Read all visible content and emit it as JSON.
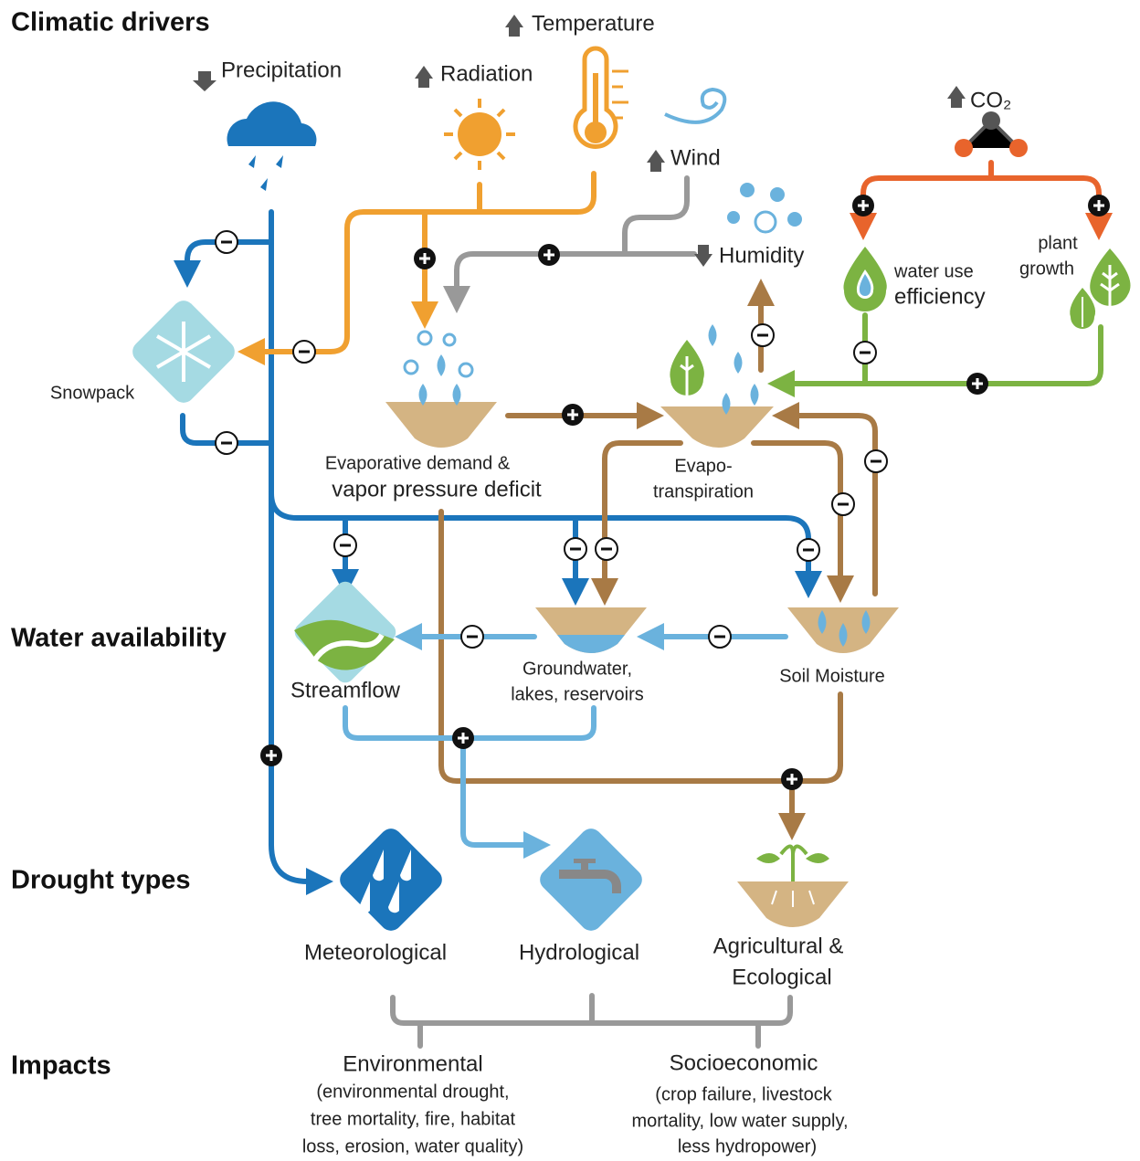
{
  "sections": [
    "Climatic drivers",
    "Water availability",
    "Drought types",
    "Impacts"
  ],
  "drivers": {
    "precipitation": "Precipitation",
    "temperature": "Temperature",
    "radiation": "Radiation",
    "wind": "Wind",
    "humidity": "Humidity",
    "co2": "CO₂"
  },
  "plants": {
    "wue": [
      "water use",
      "efficiency"
    ],
    "growth": [
      "plant",
      "growth"
    ]
  },
  "nodes": {
    "snowpack": "Snowpack",
    "evap_demand": [
      "Evaporative demand &",
      "vapor pressure deficit"
    ],
    "evapotranspiration": [
      "Evapo-",
      "transpiration"
    ],
    "streamflow": "Streamflow",
    "groundwater": [
      "Groundwater,",
      "lakes, reservoirs"
    ],
    "soil": "Soil Moisture"
  },
  "drought_types": {
    "meteorological": "Meteorological",
    "hydrological": "Hydrological",
    "agricultural": [
      "Agricultural &",
      "Ecological"
    ]
  },
  "impacts": [
    {
      "title": "Environmental",
      "lines": [
        "(environmental drought,",
        "tree mortality, fire, habitat",
        "loss, erosion, water quality)"
      ]
    },
    {
      "title": "Socioeconomic",
      "lines": [
        "(crop failure, livestock",
        "mortality, low water supply,",
        "less hydropower)"
      ]
    }
  ]
}
